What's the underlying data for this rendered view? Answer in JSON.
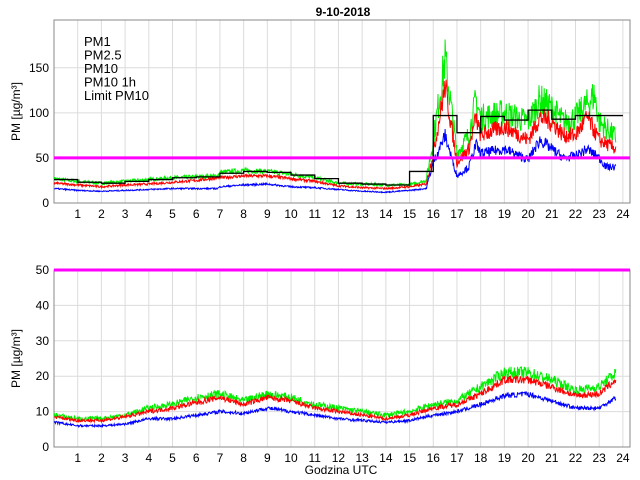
{
  "chart_data": [
    {
      "type": "line",
      "title": "9-10-2018",
      "xlabel": "",
      "ylabel": "PM [µg/m³]",
      "xlim": [
        0,
        24.3
      ],
      "ylim": [
        0,
        203
      ],
      "xticks": [
        1,
        2,
        3,
        4,
        5,
        6,
        7,
        8,
        9,
        10,
        11,
        12,
        13,
        14,
        15,
        16,
        17,
        18,
        19,
        20,
        21,
        22,
        23,
        24
      ],
      "yticks": [
        0,
        50,
        100,
        150
      ],
      "grid": true,
      "legend_position": "top-left",
      "legend": [
        "PM1",
        "PM2.5",
        "PM10",
        "PM10 1h",
        "Limit PM10"
      ],
      "series": [
        {
          "name": "PM1",
          "color": "#0000ff",
          "x": [
            0,
            1,
            2,
            3,
            4,
            5,
            6,
            6.9,
            7,
            8,
            9,
            10,
            11,
            12,
            13,
            14,
            15,
            15.7,
            16,
            16.5,
            17,
            17.5,
            17.8,
            18,
            19,
            20,
            20.5,
            21,
            21.5,
            22,
            22.5,
            23,
            23.3,
            23.7
          ],
          "y": [
            16,
            14,
            13,
            14,
            15,
            16,
            16,
            16,
            18,
            20,
            21,
            18,
            17,
            15,
            13,
            12,
            14,
            16,
            45,
            75,
            30,
            40,
            65,
            55,
            60,
            48,
            70,
            60,
            50,
            52,
            60,
            50,
            40,
            40
          ]
        },
        {
          "name": "PM2.5",
          "color": "#ff0000",
          "x": [
            0,
            1,
            2,
            3,
            4,
            5,
            6,
            7,
            8,
            9,
            10,
            11,
            12,
            13,
            14,
            15,
            15.7,
            16,
            16.5,
            17,
            17.5,
            17.8,
            18,
            19,
            20,
            20.5,
            21,
            21.5,
            22,
            22.5,
            23,
            23.7
          ],
          "y": [
            22,
            20,
            18,
            20,
            21,
            23,
            25,
            28,
            30,
            30,
            27,
            24,
            19,
            17,
            16,
            18,
            21,
            55,
            130,
            45,
            60,
            95,
            75,
            85,
            70,
            95,
            90,
            75,
            75,
            95,
            70,
            60
          ]
        },
        {
          "name": "PM10",
          "color": "#00ee00",
          "x": [
            0,
            1,
            2,
            3,
            4,
            5,
            6,
            6.9,
            7,
            8,
            9,
            10,
            11,
            12,
            13,
            14,
            15,
            15.7,
            16,
            16.5,
            17,
            17.5,
            17.8,
            18,
            19,
            20,
            20.5,
            21,
            21.5,
            22,
            22.5,
            22.8,
            23,
            23.7
          ],
          "y": [
            27,
            24,
            22,
            24,
            26,
            28,
            29,
            30,
            34,
            36,
            35,
            32,
            28,
            22,
            21,
            20,
            20,
            25,
            70,
            160,
            55,
            75,
            115,
            95,
            100,
            90,
            115,
            105,
            90,
            95,
            110,
            120,
            90,
            73
          ]
        },
        {
          "name": "PM10 1h",
          "color": "#000000",
          "step": true,
          "x": [
            0,
            1,
            2,
            3,
            4,
            5,
            6,
            7,
            8,
            9,
            10,
            11,
            12,
            13,
            14,
            15,
            16,
            17,
            18,
            19,
            20,
            21,
            22,
            23
          ],
          "y": [
            26,
            23,
            22,
            24,
            26,
            28,
            29,
            33,
            35,
            34,
            31,
            27,
            22,
            21,
            20,
            35,
            97,
            78,
            96,
            92,
            103,
            93,
            97,
            97
          ]
        },
        {
          "name": "Limit PM10",
          "color": "#ff00ff",
          "constant": 50
        }
      ]
    },
    {
      "type": "line",
      "title": "",
      "xlabel": "Godzina UTC",
      "ylabel": "PM [µg/m³]",
      "xlim": [
        0,
        24.3
      ],
      "ylim": [
        0,
        50
      ],
      "xticks": [
        1,
        2,
        3,
        4,
        5,
        6,
        7,
        8,
        9,
        10,
        11,
        12,
        13,
        14,
        15,
        16,
        17,
        18,
        19,
        20,
        21,
        22,
        23,
        24
      ],
      "yticks": [
        0,
        10,
        20,
        30,
        40,
        50
      ],
      "grid": true,
      "series": [
        {
          "name": "PM1",
          "color": "#0000ff",
          "x": [
            0,
            1,
            2,
            3,
            4,
            5,
            6,
            7,
            8,
            9,
            10,
            11,
            12,
            13,
            14,
            15,
            16,
            17,
            18,
            19,
            20,
            21,
            22,
            23,
            23.7
          ],
          "y": [
            7,
            6,
            6,
            6.5,
            8,
            8,
            9,
            10,
            9.5,
            11,
            10,
            9,
            8,
            7.5,
            7,
            7.5,
            9,
            10,
            12,
            14.5,
            15,
            13,
            11,
            11,
            14
          ]
        },
        {
          "name": "PM2.5",
          "color": "#ff0000",
          "x": [
            0,
            1,
            2,
            3,
            4,
            5,
            6,
            7,
            8,
            9,
            10,
            11,
            12,
            13,
            14,
            15,
            16,
            17,
            18,
            19,
            20,
            21,
            22,
            23,
            23.7
          ],
          "y": [
            8.5,
            7.5,
            7.5,
            8.5,
            10,
            11,
            12.5,
            14,
            12,
            14,
            13,
            11,
            10,
            9,
            8,
            9,
            11,
            12,
            15,
            19,
            19,
            17,
            14.5,
            15,
            19
          ]
        },
        {
          "name": "PM10",
          "color": "#00ee00",
          "x": [
            0,
            1,
            2,
            3,
            4,
            5,
            6,
            7,
            8,
            9,
            10,
            11,
            12,
            13,
            14,
            15,
            16,
            17,
            18,
            19,
            20,
            21,
            22,
            23,
            23.7
          ],
          "y": [
            9,
            8,
            8,
            9,
            11,
            12,
            14,
            15,
            13,
            15,
            14,
            12,
            11,
            10,
            9,
            10,
            12,
            13,
            17,
            21,
            21,
            19,
            16,
            17,
            21
          ]
        },
        {
          "name": "Limit PM10",
          "color": "#ff00ff",
          "constant": 50
        }
      ]
    }
  ]
}
